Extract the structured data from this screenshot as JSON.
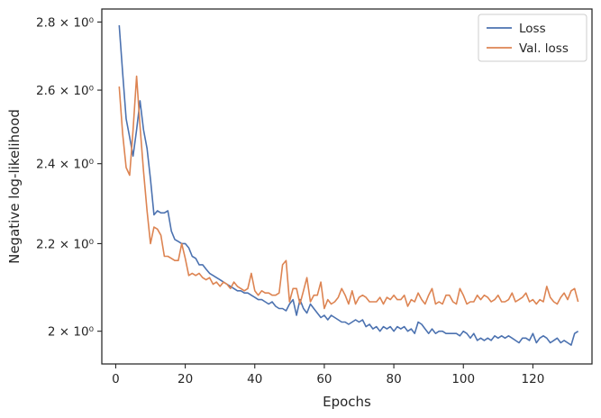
{
  "chart_data": {
    "type": "line",
    "xlabel": "Epochs",
    "ylabel": "Negative log-likelihood",
    "xlim": [
      -4,
      137
    ],
    "ylim": [
      1.93,
      2.84
    ],
    "y_scale": "log",
    "x_ticks": [
      0,
      20,
      40,
      60,
      80,
      100,
      120
    ],
    "y_ticks": [
      2.0,
      2.2,
      2.4,
      2.6,
      2.8
    ],
    "y_tick_labels": [
      "2 × 10⁰",
      "2.2 × 10⁰",
      "2.4 × 10⁰",
      "2.6 × 10⁰",
      "2.8 × 10⁰"
    ],
    "legend_position": "top-right",
    "grid": false,
    "series": [
      {
        "name": "Loss",
        "color": "#4c72b0",
        "x": [
          1,
          2,
          3,
          4,
          5,
          6,
          7,
          8,
          9,
          10,
          11,
          12,
          13,
          14,
          15,
          16,
          17,
          18,
          19,
          20,
          21,
          22,
          23,
          24,
          25,
          26,
          27,
          28,
          29,
          30,
          31,
          32,
          33,
          34,
          35,
          36,
          37,
          38,
          39,
          40,
          41,
          42,
          43,
          44,
          45,
          46,
          47,
          48,
          49,
          50,
          51,
          52,
          53,
          54,
          55,
          56,
          57,
          58,
          59,
          60,
          61,
          62,
          63,
          64,
          65,
          66,
          67,
          68,
          69,
          70,
          71,
          72,
          73,
          74,
          75,
          76,
          77,
          78,
          79,
          80,
          81,
          82,
          83,
          84,
          85,
          86,
          87,
          88,
          89,
          90,
          91,
          92,
          93,
          94,
          95,
          96,
          97,
          98,
          99,
          100,
          101,
          102,
          103,
          104,
          105,
          106,
          107,
          108,
          109,
          110,
          111,
          112,
          113,
          114,
          115,
          116,
          117,
          118,
          119,
          120,
          121,
          122,
          123,
          124,
          125,
          126,
          127,
          128,
          129,
          130,
          131,
          132,
          133
        ],
        "values": [
          2.79,
          2.65,
          2.52,
          2.47,
          2.42,
          2.49,
          2.57,
          2.49,
          2.44,
          2.36,
          2.27,
          2.28,
          2.275,
          2.275,
          2.28,
          2.23,
          2.21,
          2.205,
          2.2,
          2.2,
          2.19,
          2.17,
          2.165,
          2.15,
          2.15,
          2.14,
          2.13,
          2.125,
          2.12,
          2.115,
          2.11,
          2.105,
          2.1,
          2.095,
          2.09,
          2.09,
          2.085,
          2.085,
          2.08,
          2.075,
          2.07,
          2.07,
          2.065,
          2.06,
          2.065,
          2.055,
          2.05,
          2.05,
          2.045,
          2.06,
          2.07,
          2.035,
          2.07,
          2.05,
          2.04,
          2.06,
          2.05,
          2.04,
          2.03,
          2.035,
          2.025,
          2.035,
          2.03,
          2.025,
          2.02,
          2.02,
          2.015,
          2.02,
          2.025,
          2.02,
          2.025,
          2.01,
          2.015,
          2.005,
          2.01,
          2.0,
          2.01,
          2.005,
          2.01,
          2.0,
          2.01,
          2.005,
          2.01,
          2.0,
          2.005,
          1.995,
          2.02,
          2.015,
          2.005,
          1.995,
          2.005,
          1.995,
          2.0,
          2.0,
          1.995,
          1.995,
          1.995,
          1.995,
          1.99,
          2.0,
          1.995,
          1.985,
          1.995,
          1.98,
          1.985,
          1.98,
          1.985,
          1.98,
          1.99,
          1.985,
          1.99,
          1.985,
          1.99,
          1.985,
          1.98,
          1.975,
          1.985,
          1.985,
          1.98,
          1.995,
          1.975,
          1.985,
          1.99,
          1.985,
          1.975,
          1.98,
          1.985,
          1.975,
          1.98,
          1.975,
          1.97,
          1.995,
          2.0
        ]
      },
      {
        "name": "Val. loss",
        "color": "#dd8452",
        "x": [
          1,
          2,
          3,
          4,
          5,
          6,
          7,
          8,
          9,
          10,
          11,
          12,
          13,
          14,
          15,
          16,
          17,
          18,
          19,
          20,
          21,
          22,
          23,
          24,
          25,
          26,
          27,
          28,
          29,
          30,
          31,
          32,
          33,
          34,
          35,
          36,
          37,
          38,
          39,
          40,
          41,
          42,
          43,
          44,
          45,
          46,
          47,
          48,
          49,
          50,
          51,
          52,
          53,
          54,
          55,
          56,
          57,
          58,
          59,
          60,
          61,
          62,
          63,
          64,
          65,
          66,
          67,
          68,
          69,
          70,
          71,
          72,
          73,
          74,
          75,
          76,
          77,
          78,
          79,
          80,
          81,
          82,
          83,
          84,
          85,
          86,
          87,
          88,
          89,
          90,
          91,
          92,
          93,
          94,
          95,
          96,
          97,
          98,
          99,
          100,
          101,
          102,
          103,
          104,
          105,
          106,
          107,
          108,
          109,
          110,
          111,
          112,
          113,
          114,
          115,
          116,
          117,
          118,
          119,
          120,
          121,
          122,
          123,
          124,
          125,
          126,
          127,
          128,
          129,
          130,
          131,
          132,
          133
        ],
        "values": [
          2.61,
          2.48,
          2.39,
          2.37,
          2.49,
          2.64,
          2.5,
          2.38,
          2.28,
          2.2,
          2.24,
          2.235,
          2.22,
          2.17,
          2.17,
          2.165,
          2.16,
          2.16,
          2.2,
          2.165,
          2.125,
          2.13,
          2.125,
          2.13,
          2.12,
          2.115,
          2.12,
          2.105,
          2.11,
          2.1,
          2.11,
          2.105,
          2.095,
          2.11,
          2.1,
          2.095,
          2.09,
          2.095,
          2.13,
          2.09,
          2.08,
          2.09,
          2.085,
          2.085,
          2.08,
          2.08,
          2.085,
          2.15,
          2.16,
          2.065,
          2.095,
          2.095,
          2.06,
          2.09,
          2.12,
          2.065,
          2.08,
          2.08,
          2.11,
          2.05,
          2.07,
          2.06,
          2.065,
          2.075,
          2.095,
          2.08,
          2.06,
          2.09,
          2.06,
          2.075,
          2.08,
          2.075,
          2.065,
          2.065,
          2.065,
          2.075,
          2.06,
          2.075,
          2.07,
          2.08,
          2.07,
          2.07,
          2.08,
          2.055,
          2.07,
          2.065,
          2.085,
          2.07,
          2.06,
          2.08,
          2.095,
          2.06,
          2.065,
          2.06,
          2.08,
          2.08,
          2.065,
          2.06,
          2.095,
          2.08,
          2.06,
          2.065,
          2.065,
          2.08,
          2.07,
          2.08,
          2.075,
          2.065,
          2.07,
          2.08,
          2.065,
          2.065,
          2.07,
          2.085,
          2.065,
          2.07,
          2.075,
          2.085,
          2.065,
          2.07,
          2.06,
          2.07,
          2.065,
          2.1,
          2.075,
          2.065,
          2.06,
          2.075,
          2.085,
          2.07,
          2.09,
          2.095,
          2.065
        ]
      }
    ]
  }
}
